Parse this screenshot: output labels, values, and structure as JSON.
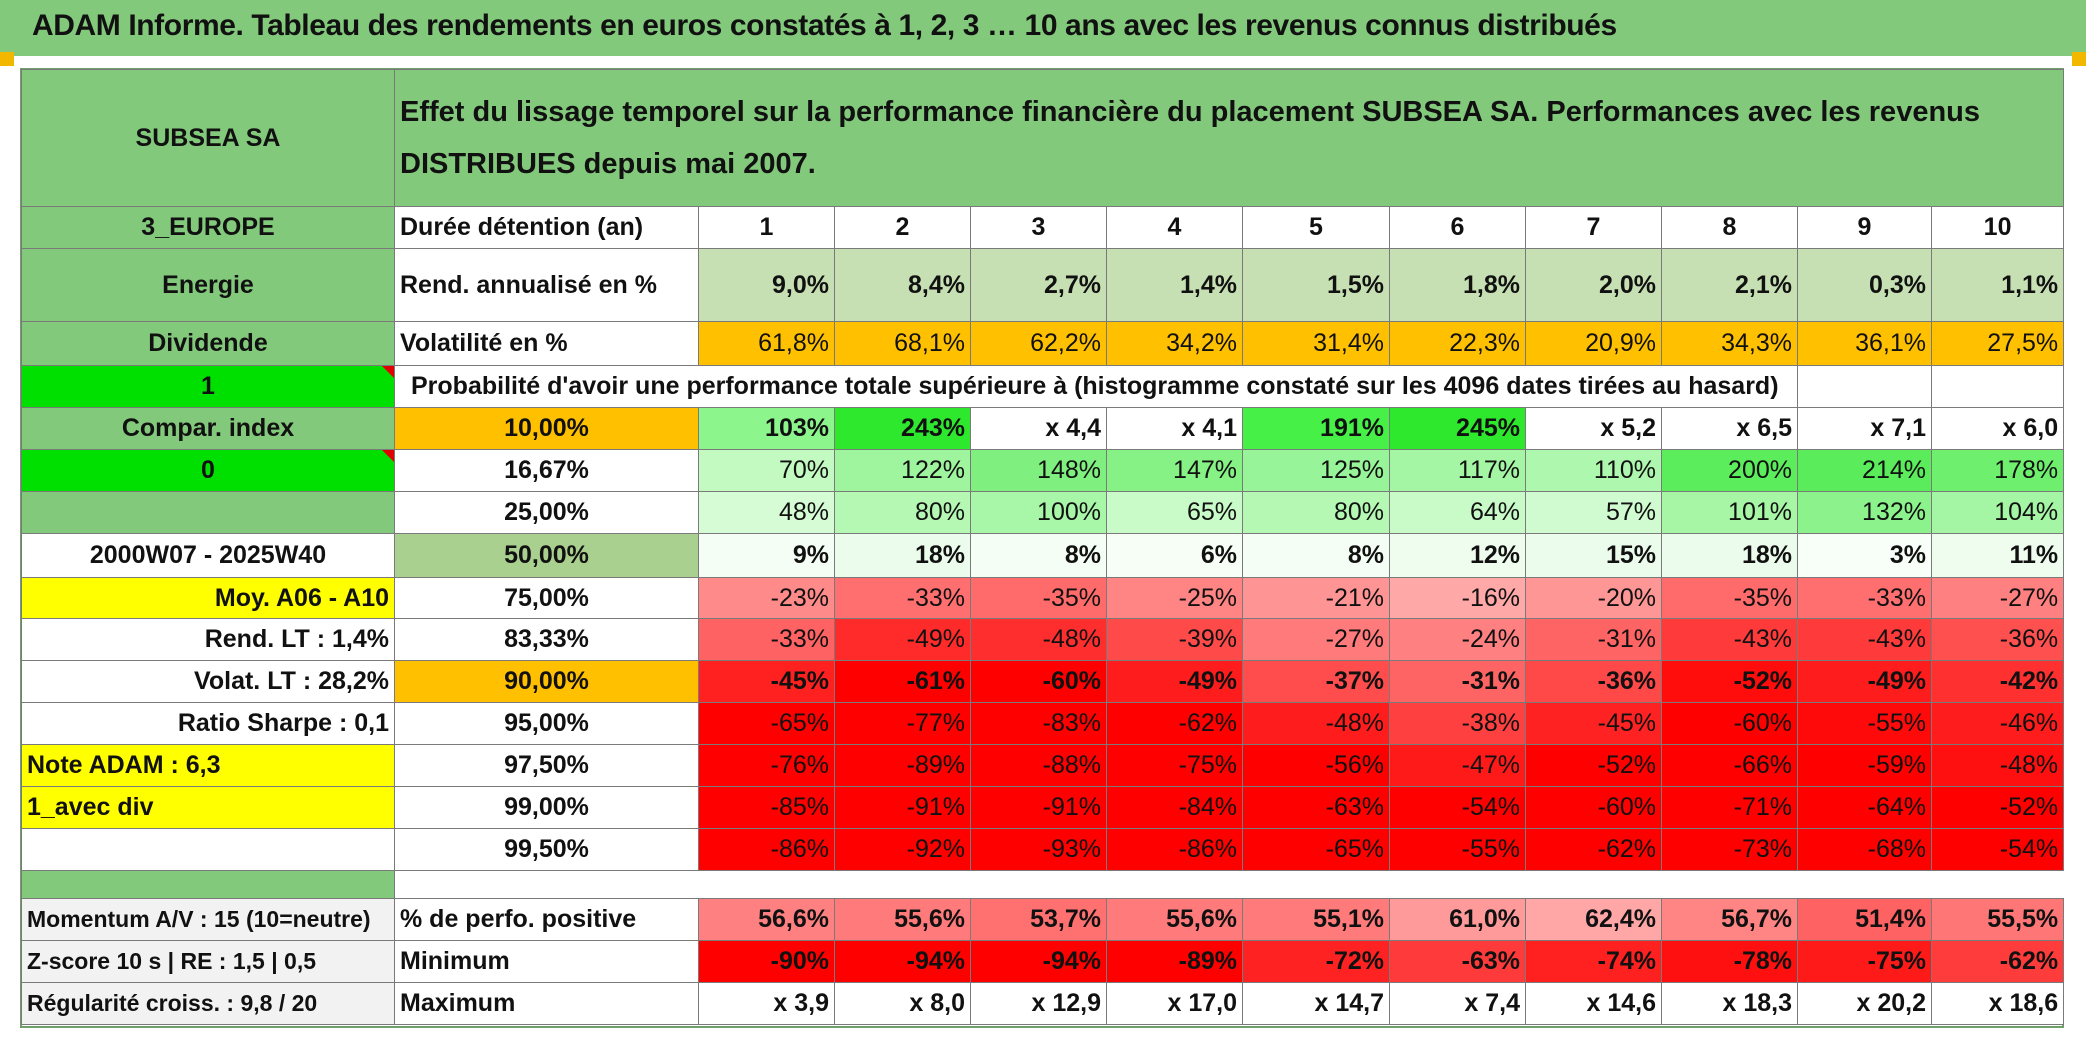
{
  "header": {
    "title": "ADAM Informe. Tableau des rendements en euros constatés à 1, 2, 3 … 10 ans avec les revenus connus distribués"
  },
  "left": {
    "name": "SUBSEA SA",
    "zone": "3_EUROPE",
    "sector": "Energie",
    "type": "Dividende",
    "flag1": "1",
    "compar": "Compar. index",
    "flag0": "0",
    "period": "2000W07 - 2025W40",
    "moy": "Moy. A06 - A10",
    "rend_lt": "Rend. LT :   1,4%",
    "volat_lt": "Volat. LT :   28,2%",
    "sharpe": "Ratio Sharpe :    0,1",
    "note": "Note ADAM : 6,3",
    "avec_div": "1_avec div",
    "momentum": "Momentum A/V : 15 (10=neutre)",
    "zscore": "Z-score 10 s | RE : 1,5 | 0,5",
    "regularite": "Régularité croiss. : 9,8 / 20"
  },
  "description": "Effet du lissage temporel sur la performance financière du placement SUBSEA SA. Performances avec les revenus DISTRIBUES depuis mai 2007.",
  "labels": {
    "duree": "Durée détention (an)",
    "rend": "Rend. annualisé en %",
    "volat": "Volatilité en %",
    "proba": "Probabilité d'avoir une performance totale supérieure à (histogramme constaté sur les 4096 dates tirées au hasard)",
    "pct_pos": "% de perfo. positive",
    "minimum": "Minimum",
    "maximum": "Maximum"
  },
  "years": [
    "1",
    "2",
    "3",
    "4",
    "5",
    "6",
    "7",
    "8",
    "9",
    "10"
  ],
  "rend": [
    "9,0%",
    "8,4%",
    "2,7%",
    "1,4%",
    "1,5%",
    "1,8%",
    "2,0%",
    "2,1%",
    "0,3%",
    "1,1%"
  ],
  "volat": [
    "61,8%",
    "68,1%",
    "62,2%",
    "34,2%",
    "31,4%",
    "22,3%",
    "20,9%",
    "34,3%",
    "36,1%",
    "27,5%"
  ],
  "percentile_rows": [
    {
      "p": "10,00%",
      "v": [
        "103%",
        "243%",
        "x 4,4",
        "x 4,1",
        "191%",
        "245%",
        "x 5,2",
        "x 6,5",
        "x 7,1",
        "x 6,0"
      ]
    },
    {
      "p": "16,67%",
      "v": [
        "70%",
        "122%",
        "148%",
        "147%",
        "125%",
        "117%",
        "110%",
        "200%",
        "214%",
        "178%"
      ]
    },
    {
      "p": "25,00%",
      "v": [
        "48%",
        "80%",
        "100%",
        "65%",
        "80%",
        "64%",
        "57%",
        "101%",
        "132%",
        "104%"
      ]
    },
    {
      "p": "50,00%",
      "v": [
        "9%",
        "18%",
        "8%",
        "6%",
        "8%",
        "12%",
        "15%",
        "18%",
        "3%",
        "11%"
      ]
    },
    {
      "p": "75,00%",
      "v": [
        "-23%",
        "-33%",
        "-35%",
        "-25%",
        "-21%",
        "-16%",
        "-20%",
        "-35%",
        "-33%",
        "-27%"
      ]
    },
    {
      "p": "83,33%",
      "v": [
        "-33%",
        "-49%",
        "-48%",
        "-39%",
        "-27%",
        "-24%",
        "-31%",
        "-43%",
        "-43%",
        "-36%"
      ]
    },
    {
      "p": "90,00%",
      "v": [
        "-45%",
        "-61%",
        "-60%",
        "-49%",
        "-37%",
        "-31%",
        "-36%",
        "-52%",
        "-49%",
        "-42%"
      ]
    },
    {
      "p": "95,00%",
      "v": [
        "-65%",
        "-77%",
        "-83%",
        "-62%",
        "-48%",
        "-38%",
        "-45%",
        "-60%",
        "-55%",
        "-46%"
      ]
    },
    {
      "p": "97,50%",
      "v": [
        "-76%",
        "-89%",
        "-88%",
        "-75%",
        "-56%",
        "-47%",
        "-52%",
        "-66%",
        "-59%",
        "-48%"
      ]
    },
    {
      "p": "99,00%",
      "v": [
        "-85%",
        "-91%",
        "-91%",
        "-84%",
        "-63%",
        "-54%",
        "-60%",
        "-71%",
        "-64%",
        "-52%"
      ]
    },
    {
      "p": "99,50%",
      "v": [
        "-86%",
        "-92%",
        "-93%",
        "-86%",
        "-65%",
        "-55%",
        "-62%",
        "-73%",
        "-68%",
        "-54%"
      ]
    }
  ],
  "pct_pos": [
    "56,6%",
    "55,6%",
    "53,7%",
    "55,6%",
    "55,1%",
    "61,0%",
    "62,4%",
    "56,7%",
    "51,4%",
    "55,5%"
  ],
  "minimum": [
    "-90%",
    "-94%",
    "-94%",
    "-89%",
    "-72%",
    "-63%",
    "-74%",
    "-78%",
    "-75%",
    "-62%"
  ],
  "maximum": [
    "x 3,9",
    "x 8,0",
    "x 12,9",
    "x 17,0",
    "x 14,7",
    "x 7,4",
    "x 14,6",
    "x 18,3",
    "x 20,2",
    "x 18,6"
  ],
  "colors": {
    "header_green": "#83c97c",
    "light_green": "#c6e0b4",
    "orange": "#ffc000",
    "lime": "#00e000",
    "yellow": "#ffff00",
    "red_text": "#d80000"
  },
  "cell_colors": {
    "percentile_rows": [
      [
        "#8cf58c",
        "#2ee82e",
        "#ffffff",
        "#ffffff",
        "#46f046",
        "#2ee82e",
        "#ffffff",
        "#ffffff",
        "#ffffff",
        "#ffffff"
      ],
      [
        "#c2fac2",
        "#9ef59e",
        "#7ff07f",
        "#86f286",
        "#98f498",
        "#a4f6a4",
        "#aef7ae",
        "#5ced5c",
        "#5aec5a",
        "#6ef06e"
      ],
      [
        "#d6fcd6",
        "#b4f8b4",
        "#a8f6a8",
        "#c8fbc8",
        "#b4f8b4",
        "#c8fbc8",
        "#d0fbd0",
        "#a6f6a6",
        "#8cf38c",
        "#a4f5a4"
      ],
      [
        "#f4fef4",
        "#ecfcec",
        "#f4fef4",
        "#f6fef6",
        "#f4fef4",
        "#eefdee",
        "#ecfcec",
        "#ecfcec",
        "#f8fff8",
        "#eefdee"
      ],
      [
        "#ff8a8a",
        "#ff6f6f",
        "#ff6a6a",
        "#ff8484",
        "#ff9494",
        "#ffa8a8",
        "#ff9696",
        "#ff6a6a",
        "#ff6f6f",
        "#ff8080"
      ],
      [
        "#ff6262",
        "#ff2a2a",
        "#ff2e2e",
        "#ff4a4a",
        "#ff7a7a",
        "#ff8080",
        "#ff6464",
        "#ff3a3a",
        "#ff3a3a",
        "#ff5050"
      ],
      [
        "#ff2020",
        "#ff0000",
        "#ff0000",
        "#ff1c1c",
        "#ff4c4c",
        "#ff6464",
        "#ff4848",
        "#ff0c0c",
        "#ff1c1c",
        "#ff3030"
      ],
      [
        "#ff0000",
        "#ff0000",
        "#ff0000",
        "#ff0000",
        "#ff1c1c",
        "#ff4040",
        "#ff2222",
        "#ff0000",
        "#ff0a0a",
        "#ff1c1c"
      ],
      [
        "#ff0000",
        "#ff0000",
        "#ff0000",
        "#ff0000",
        "#ff0000",
        "#ff1a1a",
        "#ff0000",
        "#ff0000",
        "#ff0000",
        "#ff1010"
      ],
      [
        "#ff0000",
        "#ff0000",
        "#ff0000",
        "#ff0000",
        "#ff0000",
        "#ff0000",
        "#ff0000",
        "#ff0000",
        "#ff0000",
        "#ff0000"
      ],
      [
        "#ff0000",
        "#ff0000",
        "#ff0000",
        "#ff0000",
        "#ff0000",
        "#ff0000",
        "#ff0000",
        "#ff0000",
        "#ff0000",
        "#ff0000"
      ]
    ],
    "pct_pos": [
      "#ff8080",
      "#ff7a7a",
      "#ff7070",
      "#ff7a7a",
      "#ff7a7a",
      "#ff9a9a",
      "#ffa6a6",
      "#ff8484",
      "#ff6262",
      "#ff7676"
    ],
    "minimum": [
      "#ff0000",
      "#ff0000",
      "#ff0000",
      "#ff0000",
      "#ff2222",
      "#ff3a3a",
      "#ff2020",
      "#ff1010",
      "#ff1a1a",
      "#ff3c3c"
    ]
  }
}
